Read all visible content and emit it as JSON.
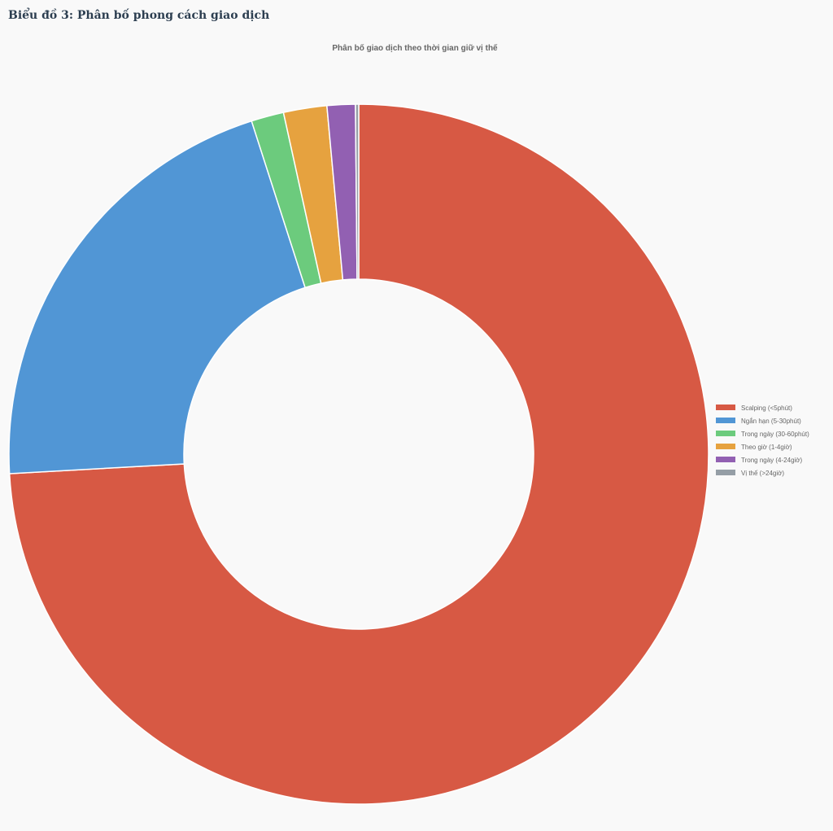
{
  "page": {
    "heading": "Biểu đồ 3: Phân bố phong cách giao dịch"
  },
  "chart_data": {
    "type": "pie",
    "variant": "doughnut",
    "title": "Phân bố giao dịch theo thời gian giữ vị thế",
    "legend_position": "right",
    "categories": [
      "Scalping (<5phút)",
      "Ngắn hạn (5-30phút)",
      "Trong ngày (30-60phút)",
      "Theo giờ (1-4giờ)",
      "Trong ngày (4-24giờ)",
      "Vị thế (>24giờ)"
    ],
    "values": [
      74.0,
      20.9,
      1.5,
      2.0,
      1.3,
      0.15
    ],
    "colors": [
      "#d75944",
      "#5196d5",
      "#6ccb7d",
      "#e6a23f",
      "#9260b2",
      "#959ea6"
    ]
  }
}
